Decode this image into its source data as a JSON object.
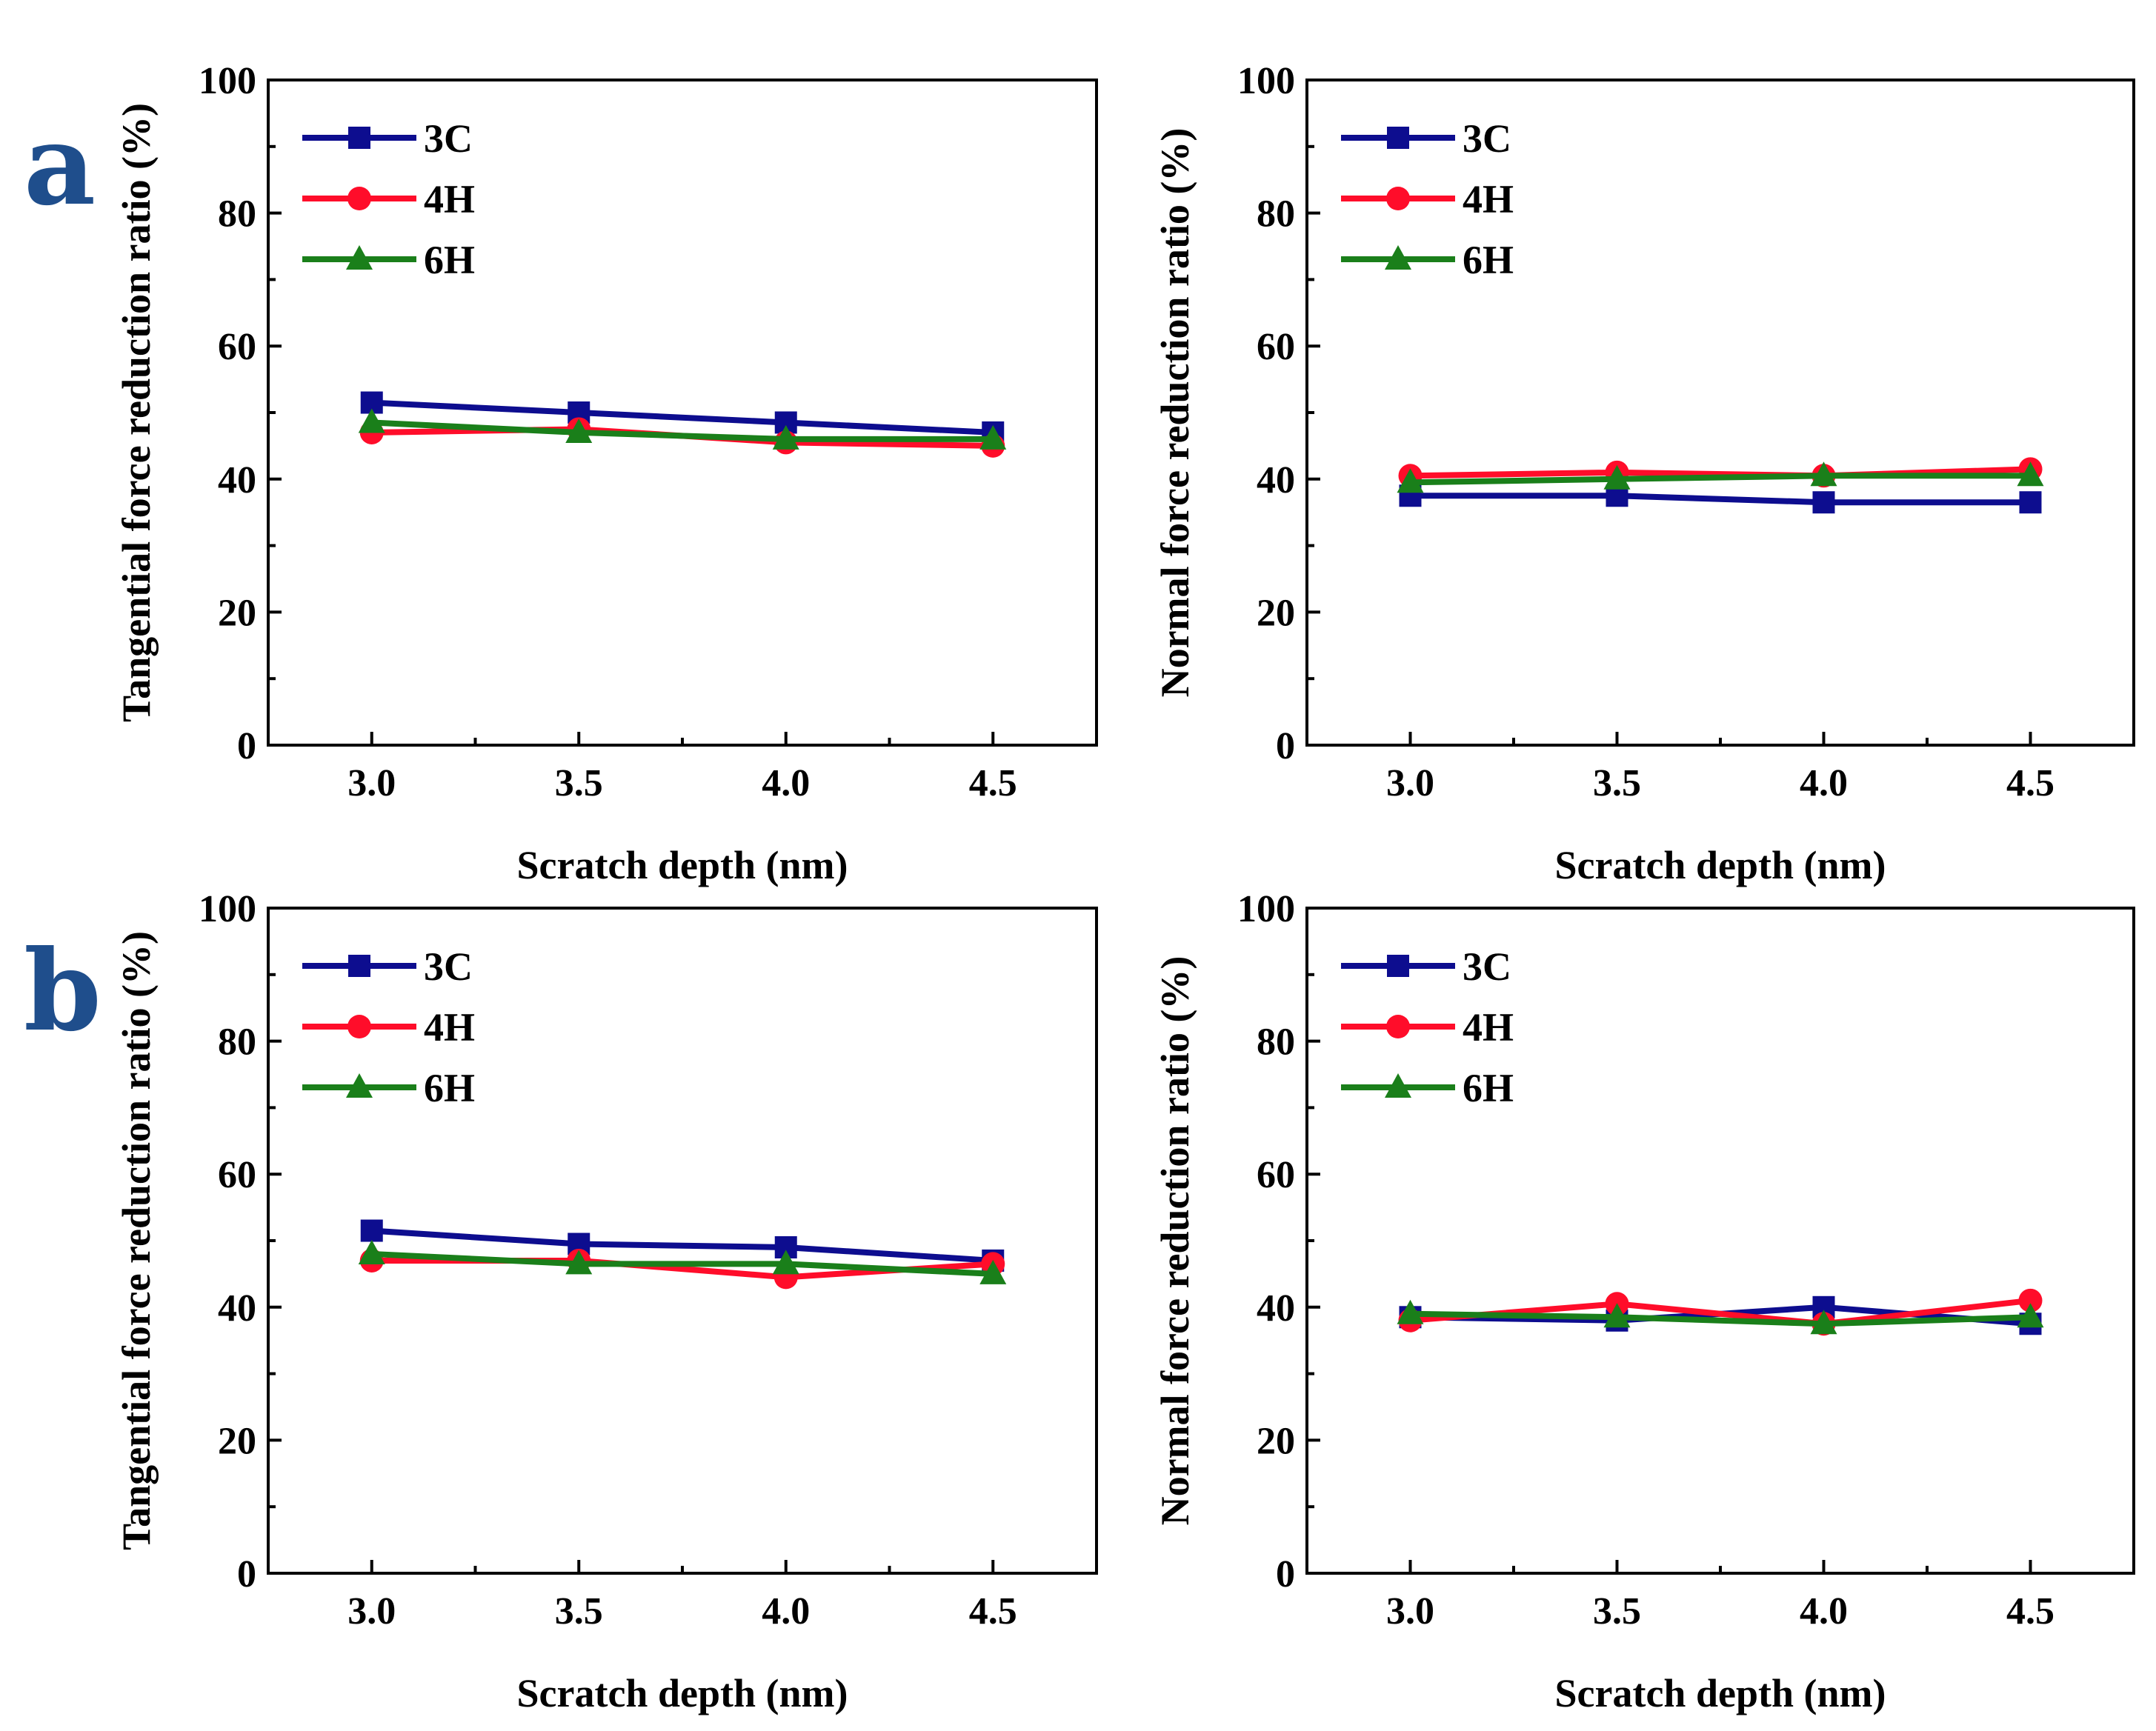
{
  "panel_labels": [
    "a",
    "b"
  ],
  "colors": {
    "3C": "#0d0d8f",
    "4H": "#ff0d2a",
    "6H": "#1a7f1a"
  },
  "chart_data": [
    {
      "type": "line",
      "panel": "a",
      "xlabel": "Scratch depth (nm)",
      "ylabel": "Tangential force reduction ratio (%)",
      "x": [
        3.0,
        3.5,
        4.0,
        4.5
      ],
      "x_tick_labels": [
        "3.0",
        "3.5",
        "4.0",
        "4.5"
      ],
      "xlim": [
        2.75,
        4.75
      ],
      "ylim": [
        0,
        100
      ],
      "y_ticks": [
        0,
        20,
        40,
        60,
        80,
        100
      ],
      "legend": "top-left",
      "series": [
        {
          "name": "3C",
          "marker": "square",
          "values": [
            51.5,
            50,
            48.5,
            47
          ]
        },
        {
          "name": "4H",
          "marker": "circle",
          "values": [
            47,
            47.5,
            45.5,
            45
          ]
        },
        {
          "name": "6H",
          "marker": "triangle",
          "values": [
            48.5,
            47,
            46,
            46
          ]
        }
      ]
    },
    {
      "type": "line",
      "panel": "a",
      "xlabel": "Scratch depth (nm)",
      "ylabel": "Normal force reduction ratio (%)",
      "x": [
        3.0,
        3.5,
        4.0,
        4.5
      ],
      "x_tick_labels": [
        "3.0",
        "3.5",
        "4.0",
        "4.5"
      ],
      "xlim": [
        2.75,
        4.75
      ],
      "ylim": [
        0,
        100
      ],
      "y_ticks": [
        0,
        20,
        40,
        60,
        80,
        100
      ],
      "legend": "top-left",
      "series": [
        {
          "name": "3C",
          "marker": "square",
          "values": [
            37.5,
            37.5,
            36.5,
            36.5
          ]
        },
        {
          "name": "4H",
          "marker": "circle",
          "values": [
            40.5,
            41,
            40.5,
            41.5
          ]
        },
        {
          "name": "6H",
          "marker": "triangle",
          "values": [
            39.5,
            40,
            40.5,
            40.5
          ]
        }
      ]
    },
    {
      "type": "line",
      "panel": "b",
      "xlabel": "Scratch depth (nm)",
      "ylabel": "Tangential force reduction ratio (%)",
      "x": [
        3.0,
        3.5,
        4.0,
        4.5
      ],
      "x_tick_labels": [
        "3.0",
        "3.5",
        "4.0",
        "4.5"
      ],
      "xlim": [
        2.75,
        4.75
      ],
      "ylim": [
        0,
        100
      ],
      "y_ticks": [
        0,
        20,
        40,
        60,
        80,
        100
      ],
      "legend": "top-left",
      "series": [
        {
          "name": "3C",
          "marker": "square",
          "values": [
            51.5,
            49.5,
            49,
            47
          ]
        },
        {
          "name": "4H",
          "marker": "circle",
          "values": [
            47,
            47,
            44.5,
            46.5
          ]
        },
        {
          "name": "6H",
          "marker": "triangle",
          "values": [
            48,
            46.5,
            46.5,
            45
          ]
        }
      ]
    },
    {
      "type": "line",
      "panel": "b",
      "xlabel": "Scratch depth (nm)",
      "ylabel": "Normal force reduction ratio (%)",
      "x": [
        3.0,
        3.5,
        4.0,
        4.5
      ],
      "x_tick_labels": [
        "3.0",
        "3.5",
        "4.0",
        "4.5"
      ],
      "xlim": [
        2.75,
        4.75
      ],
      "ylim": [
        0,
        100
      ],
      "y_ticks": [
        0,
        20,
        40,
        60,
        80,
        100
      ],
      "legend": "top-left",
      "series": [
        {
          "name": "3C",
          "marker": "square",
          "values": [
            38.5,
            38,
            40,
            37.5
          ]
        },
        {
          "name": "4H",
          "marker": "circle",
          "values": [
            38,
            40.5,
            37.5,
            41
          ]
        },
        {
          "name": "6H",
          "marker": "triangle",
          "values": [
            39,
            38.5,
            37.5,
            38.5
          ]
        }
      ]
    }
  ]
}
